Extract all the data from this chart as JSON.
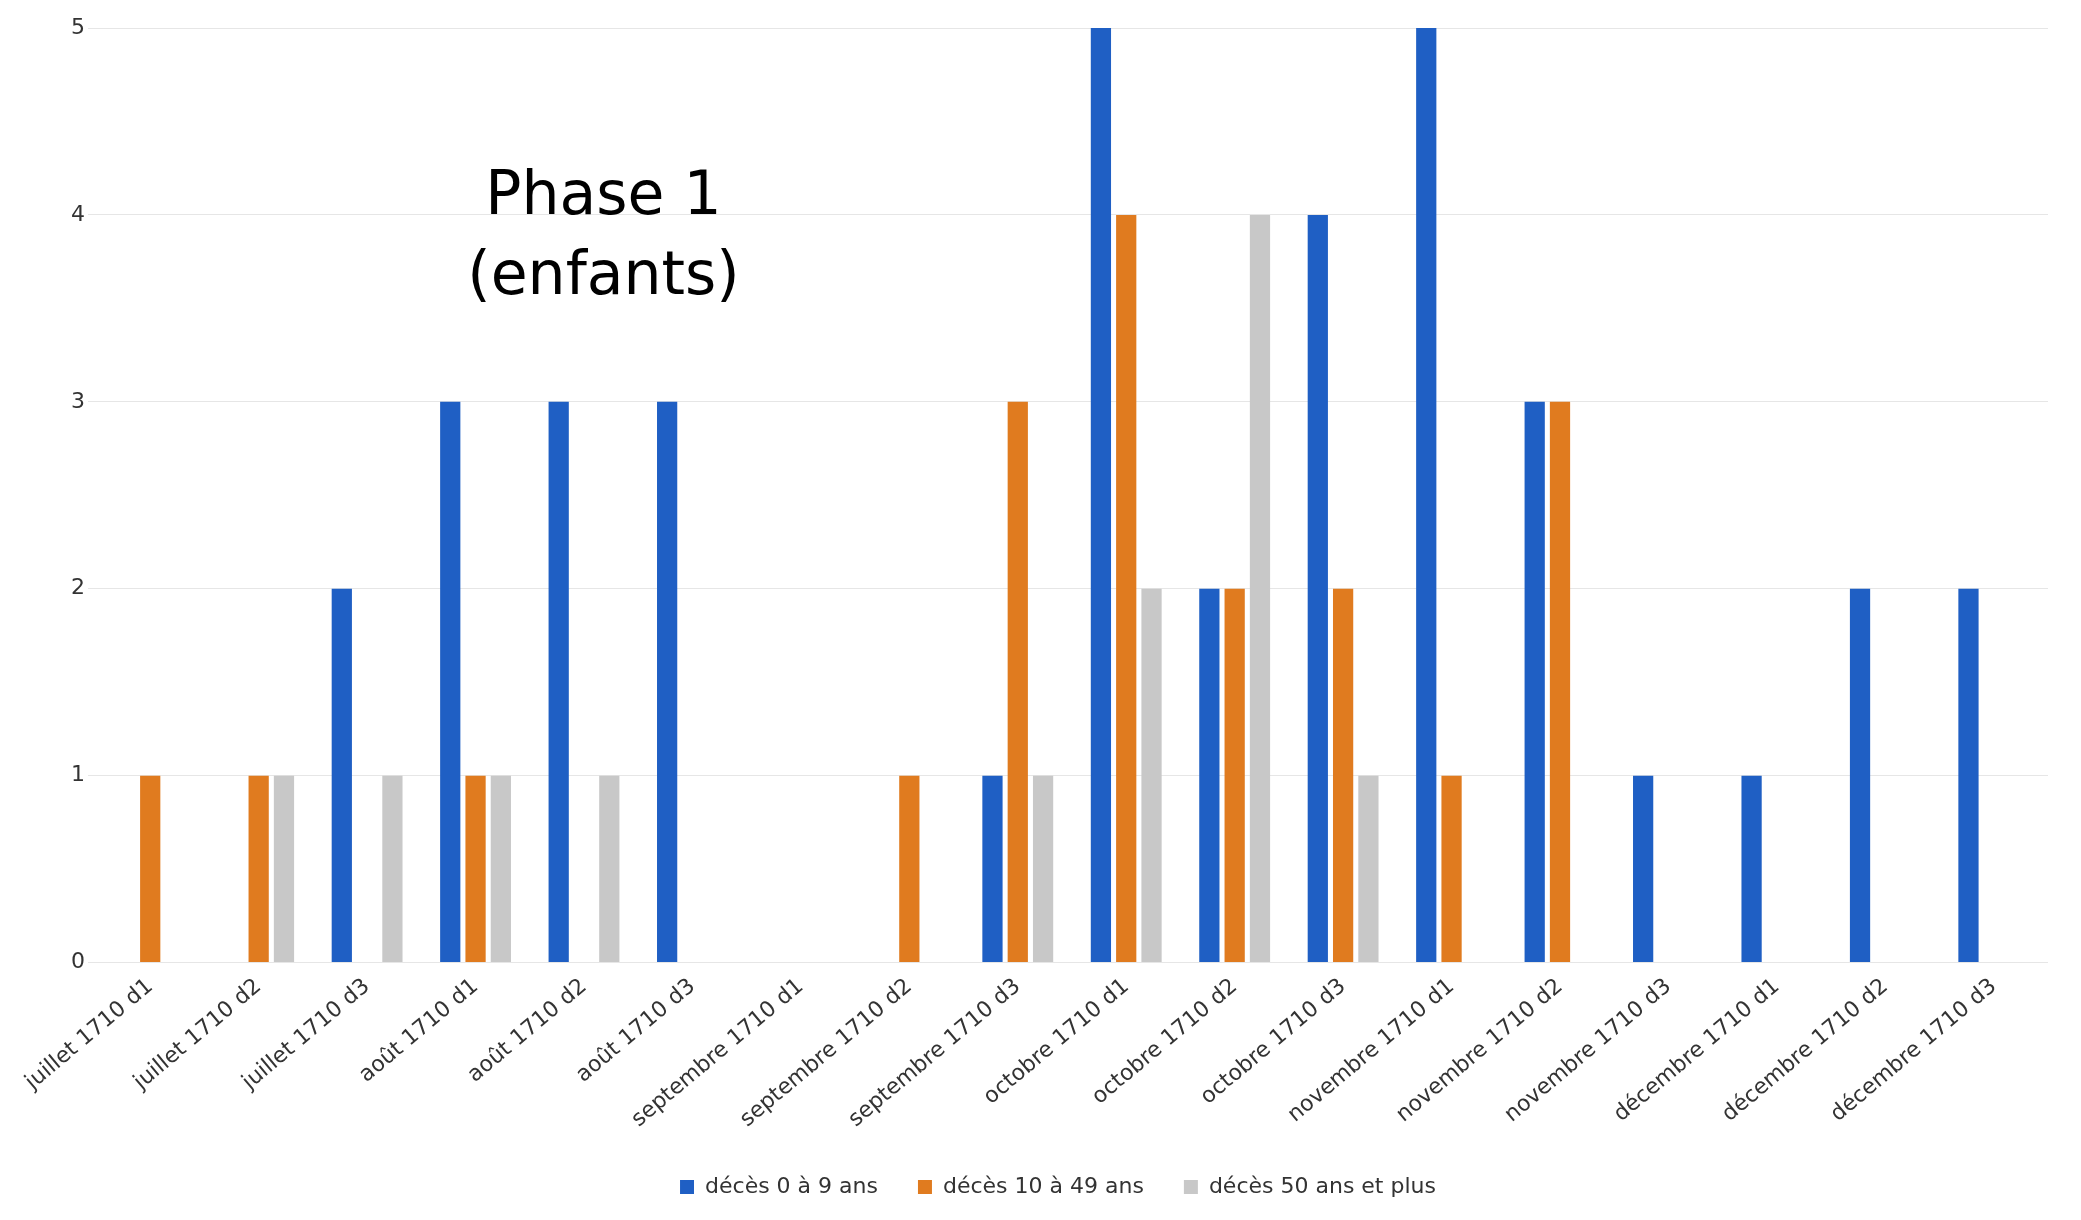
{
  "chart_data": {
    "type": "bar",
    "categories": [
      "juillet 1710 d1",
      "juillet 1710 d2",
      "juillet 1710 d3",
      "août 1710 d1",
      "août 1710 d2",
      "août 1710 d3",
      "septembre 1710 d1",
      "septembre 1710 d2",
      "septembre 1710 d3",
      "octobre 1710 d1",
      "octobre 1710 d2",
      "octobre 1710 d3",
      "novembre 1710 d1",
      "novembre 1710 d2",
      "novembre 1710 d3",
      "décembre 1710 d1",
      "décembre 1710 d2",
      "décembre 1710 d3"
    ],
    "series": [
      {
        "name": "décès 0 à 9 ans",
        "color": "#1f5fc4",
        "values": [
          null,
          null,
          2,
          3,
          3,
          3,
          null,
          null,
          1,
          5,
          2,
          4,
          5,
          3,
          1,
          1,
          2,
          2
        ]
      },
      {
        "name": "décès 10 à 49 ans",
        "color": "#e07b1f",
        "values": [
          1,
          1,
          null,
          1,
          null,
          null,
          null,
          1,
          3,
          4,
          2,
          2,
          1,
          3,
          null,
          null,
          null,
          null
        ]
      },
      {
        "name": "décès 50 ans et plus",
        "color": "#c8c8c8",
        "values": [
          null,
          1,
          1,
          1,
          1,
          null,
          null,
          null,
          1,
          2,
          4,
          1,
          null,
          null,
          null,
          null,
          null,
          null
        ]
      }
    ],
    "ylim": [
      0,
      5
    ],
    "yticks": [
      0,
      1,
      2,
      3,
      4,
      5
    ],
    "grid": "y",
    "legend": "bottom",
    "annotations": [
      "Phase 1\n(enfants)"
    ]
  }
}
